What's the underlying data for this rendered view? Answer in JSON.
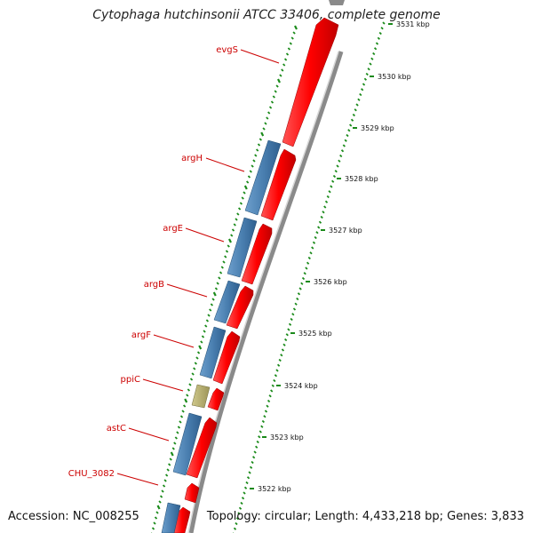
{
  "title": "Cytophaga hutchinsonii ATCC 33406, complete genome",
  "accession": "Accession: NC_008255",
  "summary": "Topology: circular; Length: 4,433,218 bp; Genes: 3,833",
  "colors": {
    "forward_gene": "#ff0000",
    "reverse_gene": "#4a7fb0",
    "other_feature": "#b8b070",
    "label": "#cc0000",
    "tick": "#1a8a1a",
    "backbone": "#8a8a8a"
  },
  "gene_labels": [
    {
      "name": "evgS"
    },
    {
      "name": "argH"
    },
    {
      "name": "argE"
    },
    {
      "name": "argB"
    },
    {
      "name": "argF"
    },
    {
      "name": "ppiC"
    },
    {
      "name": "astC"
    },
    {
      "name": "CHU_3082"
    }
  ],
  "kbp_ticks": [
    {
      "label": "3531 kbp"
    },
    {
      "label": "3530 kbp"
    },
    {
      "label": "3529 kbp"
    },
    {
      "label": "3528 kbp"
    },
    {
      "label": "3527 kbp"
    },
    {
      "label": "3526 kbp"
    },
    {
      "label": "3525 kbp"
    },
    {
      "label": "3524 kbp"
    },
    {
      "label": "3523 kbp"
    },
    {
      "label": "3522 kbp"
    }
  ]
}
